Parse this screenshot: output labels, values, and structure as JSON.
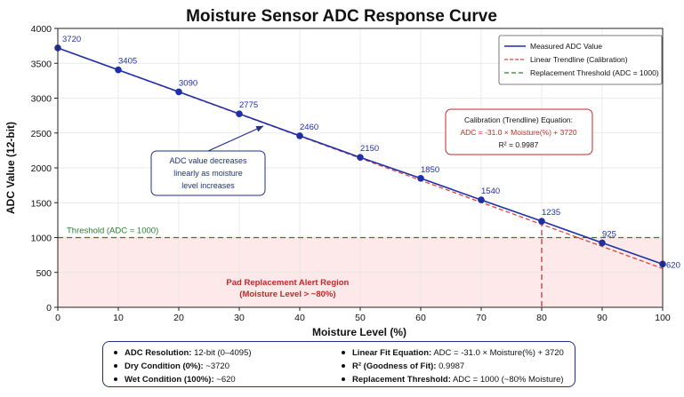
{
  "chart_data": {
    "type": "line",
    "title": "Moisture Sensor ADC Response Curve",
    "xlabel": "Moisture Level (%)",
    "ylabel": "ADC Value (12-bit)",
    "xlim": [
      0,
      100
    ],
    "ylim": [
      0,
      4000
    ],
    "x_ticks": [
      0,
      10,
      20,
      30,
      40,
      50,
      60,
      70,
      80,
      90,
      100
    ],
    "y_ticks": [
      0,
      500,
      1000,
      1500,
      2000,
      2500,
      3000,
      3500,
      4000
    ],
    "grid": true,
    "legend_position": "top-right",
    "series": [
      {
        "name": "Measured ADC Value",
        "color": "#1f2fa8",
        "x": [
          0,
          10,
          20,
          30,
          40,
          50,
          60,
          70,
          80,
          90,
          100
        ],
        "values": [
          3720,
          3405,
          3090,
          2775,
          2460,
          2150,
          1850,
          1540,
          1235,
          925,
          620
        ],
        "data_labels": [
          "3720",
          "3405",
          "3090",
          "2775",
          "2460",
          "2150",
          "1850",
          "1540",
          "1235",
          "925",
          "620"
        ]
      },
      {
        "name": "Linear Trendline (Calibration)",
        "color": "#e0443a",
        "style": "dashed",
        "slope": -31.0,
        "intercept": 3720
      },
      {
        "name": "Replacement Threshold (ADC = 1000)",
        "color": "#2e7d32",
        "style": "dashed",
        "y": 1000
      }
    ],
    "threshold_label": "Threshold (ADC = 1000)",
    "alert_region": {
      "y_max": 1000,
      "marker_x": 80,
      "label_line1": "Pad Replacement Alert Region",
      "label_line2": "(Moisture Level > ~80%)",
      "fill_color": "#fde9ea",
      "text_color": "#c62828"
    },
    "annotation_arrow": {
      "lines": [
        "ADC value decreases",
        "linearly as moisture",
        "level increases"
      ],
      "points_to_x": 34,
      "points_to_y": 2600
    },
    "equation_box": {
      "title": "Calibration (Trendline) Equation:",
      "equation": "ADC = -31.0 × Moisture(%) + 3720",
      "r2": "R² = 0.9987"
    }
  },
  "info": {
    "left": [
      {
        "key": "ADC Resolution:",
        "value": " 12-bit (0–4095)"
      },
      {
        "key": "Dry Condition (0%):",
        "value": " ~3720"
      },
      {
        "key": "Wet Condition (100%):",
        "value": " ~620"
      }
    ],
    "right": [
      {
        "key": "Linear Fit Equation:",
        "value": " ADC = -31.0 × Moisture(%) + 3720"
      },
      {
        "key": "R² (Goodness of Fit):",
        "value": " 0.9987"
      },
      {
        "key": "Replacement Threshold:",
        "value": " ADC = 1000 (~80% Moisture)"
      }
    ]
  }
}
